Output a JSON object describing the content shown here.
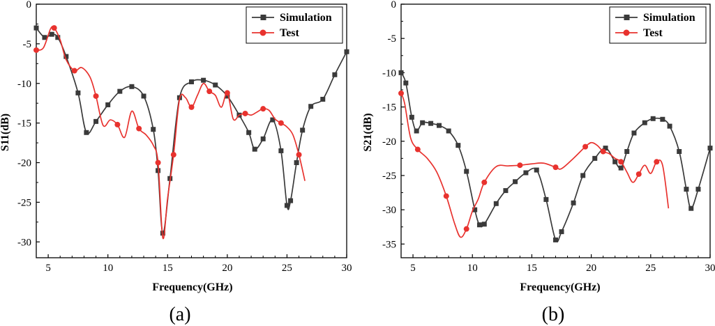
{
  "chart_data": [
    {
      "type": "line",
      "panel_label": "(a)",
      "xlabel": "Frequency(GHz)",
      "ylabel": "S11(dB)",
      "xlim": [
        4,
        30
      ],
      "ylim": [
        -32,
        0
      ],
      "xticks": [
        5,
        10,
        15,
        20,
        25,
        30
      ],
      "yticks": [
        0,
        -5,
        -10,
        -15,
        -20,
        -25,
        -30
      ],
      "grid": false,
      "legend": "top-right",
      "series": [
        {
          "name": "Simulation",
          "color": "#3a3a3a",
          "marker": "square",
          "x": [
            4.0,
            4.7,
            5.3,
            5.8,
            6.5,
            7.5,
            8.2,
            9.0,
            10.0,
            11.0,
            12.0,
            13.0,
            13.8,
            14.2,
            14.6,
            15.2,
            16.0,
            17.0,
            18.0,
            19.0,
            20.0,
            21.0,
            21.8,
            22.3,
            23.0,
            23.8,
            24.5,
            25.0,
            25.3,
            25.8,
            26.3,
            27.0,
            28.0,
            29.0,
            30.0
          ],
          "y": [
            -3.0,
            -4.2,
            -3.8,
            -4.2,
            -6.6,
            -11.2,
            -16.2,
            -14.8,
            -12.7,
            -11.0,
            -10.4,
            -11.6,
            -15.8,
            -21.0,
            -28.9,
            -22.0,
            -11.8,
            -9.8,
            -9.6,
            -10.2,
            -11.6,
            -14.0,
            -16.2,
            -18.3,
            -17.0,
            -14.6,
            -18.5,
            -25.4,
            -24.8,
            -20.0,
            -15.9,
            -12.9,
            -12.0,
            -8.9,
            -6.0
          ]
        },
        {
          "name": "Test",
          "color": "#e8322e",
          "marker": "circle",
          "x": [
            4.0,
            4.6,
            5.2,
            5.5,
            6.0,
            6.5,
            7.2,
            7.8,
            8.5,
            9.0,
            9.6,
            10.2,
            10.8,
            11.4,
            12.0,
            12.6,
            13.2,
            13.8,
            14.2,
            14.6,
            15.0,
            15.5,
            16.0,
            16.5,
            17.0,
            17.5,
            18.0,
            18.5,
            19.0,
            19.5,
            20.0,
            20.5,
            21.0,
            21.5,
            22.0,
            22.5,
            23.0,
            23.5,
            24.0,
            24.5,
            25.0,
            25.5,
            26.0,
            26.5
          ],
          "y": [
            -5.8,
            -5.5,
            -3.1,
            -3.0,
            -4.5,
            -7.0,
            -8.4,
            -8.0,
            -9.2,
            -11.6,
            -15.3,
            -14.6,
            -15.2,
            -16.8,
            -13.5,
            -15.7,
            -16.5,
            -17.8,
            -20.0,
            -29.5,
            -24.5,
            -19.0,
            -12.0,
            -11.8,
            -13.0,
            -11.5,
            -10.0,
            -11.0,
            -11.5,
            -13.0,
            -11.2,
            -14.5,
            -14.0,
            -13.8,
            -14.0,
            -13.6,
            -13.2,
            -13.4,
            -14.5,
            -15.0,
            -15.5,
            -16.5,
            -19.0,
            -22.3
          ]
        }
      ]
    },
    {
      "type": "line",
      "panel_label": "(b)",
      "xlabel": "Frequency(GHz)",
      "ylabel": "S21(dB)",
      "xlim": [
        4,
        30
      ],
      "ylim": [
        -37,
        0
      ],
      "xticks": [
        5,
        10,
        15,
        20,
        25,
        30
      ],
      "yticks": [
        0,
        -5,
        -10,
        -15,
        -20,
        -25,
        -30,
        -35
      ],
      "grid": false,
      "legend": "top-right",
      "series": [
        {
          "name": "Simulation",
          "color": "#3a3a3a",
          "marker": "square",
          "x": [
            4.0,
            4.4,
            4.9,
            5.3,
            5.8,
            6.5,
            7.2,
            8.0,
            8.8,
            9.5,
            10.2,
            10.6,
            11.0,
            12.0,
            12.8,
            13.6,
            14.5,
            15.4,
            16.2,
            17.0,
            17.5,
            18.5,
            19.3,
            20.3,
            21.2,
            22.0,
            22.5,
            23.0,
            23.6,
            24.5,
            25.2,
            26.0,
            26.6,
            27.4,
            28.0,
            28.4,
            29.0,
            30.0
          ],
          "y": [
            -10.0,
            -11.5,
            -16.5,
            -18.5,
            -17.3,
            -17.4,
            -17.7,
            -18.5,
            -20.6,
            -24.4,
            -30.0,
            -32.2,
            -32.1,
            -29.1,
            -27.2,
            -25.9,
            -24.6,
            -24.2,
            -28.5,
            -34.4,
            -33.2,
            -29.0,
            -25.0,
            -22.5,
            -21.0,
            -23.0,
            -23.9,
            -21.5,
            -18.8,
            -17.3,
            -16.7,
            -16.8,
            -17.8,
            -21.5,
            -27.0,
            -29.8,
            -27.0,
            -21.0
          ]
        },
        {
          "name": "Test",
          "color": "#e8322e",
          "marker": "circle",
          "x": [
            4.0,
            4.3,
            4.8,
            5.4,
            6.2,
            7.0,
            7.8,
            8.5,
            9.0,
            9.5,
            10.0,
            10.5,
            11.0,
            12.0,
            13.0,
            14.0,
            15.0,
            16.0,
            17.0,
            17.5,
            18.5,
            19.5,
            20.0,
            20.5,
            21.0,
            21.5,
            22.0,
            22.5,
            23.0,
            23.5,
            24.0,
            24.5,
            25.0,
            25.5,
            26.0,
            26.5
          ],
          "y": [
            -13.0,
            -14.5,
            -19.5,
            -21.2,
            -22.5,
            -24.5,
            -28.0,
            -32.0,
            -34.0,
            -32.8,
            -30.2,
            -28.4,
            -26.0,
            -23.7,
            -23.6,
            -23.5,
            -23.3,
            -23.2,
            -23.8,
            -24.0,
            -22.5,
            -20.8,
            -20.2,
            -20.6,
            -21.5,
            -21.8,
            -22.5,
            -23.0,
            -24.5,
            -26.0,
            -24.8,
            -23.5,
            -24.7,
            -23.0,
            -23.5,
            -29.8
          ]
        }
      ]
    }
  ]
}
